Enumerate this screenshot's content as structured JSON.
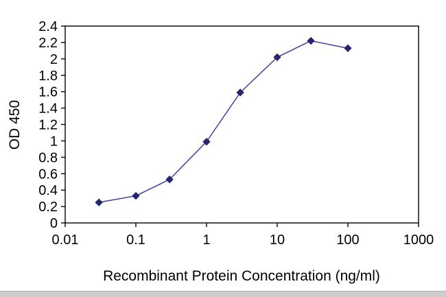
{
  "chart_data": {
    "type": "line",
    "x": [
      0.03,
      0.1,
      0.3,
      1,
      3,
      10,
      30,
      100
    ],
    "y": [
      0.25,
      0.33,
      0.53,
      0.99,
      1.59,
      2.02,
      2.22,
      2.13
    ],
    "title": "",
    "xlabel": "Recombinant Protein Concentration (ng/ml)",
    "ylabel": "OD 450",
    "x_scale": "log",
    "xlim": [
      0.01,
      1000
    ],
    "ylim": [
      0,
      2.4
    ],
    "xticks": [
      0.01,
      0.1,
      1,
      10,
      100,
      1000
    ],
    "xtick_labels": [
      "0.01",
      "0.1",
      "1",
      "10",
      "100",
      "1000"
    ],
    "ytick_step": 0.2,
    "grid": "off",
    "legend": "none",
    "line_color": "#4a4aa0",
    "marker_color": "#26266e",
    "marker_shape": "diamond",
    "axis_color": "#000000"
  }
}
